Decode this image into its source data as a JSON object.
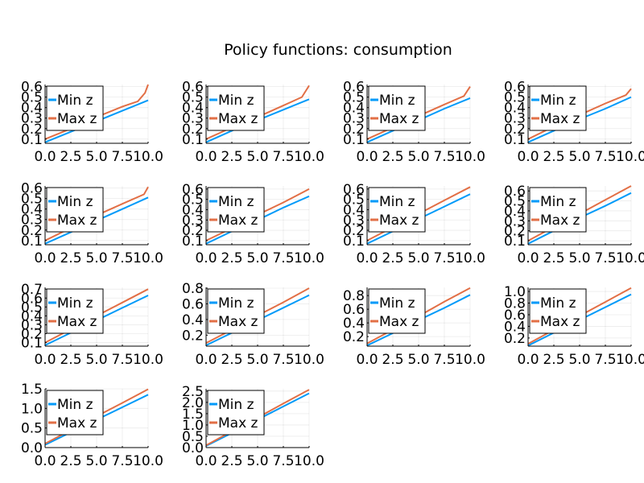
{
  "chart_data": {
    "type": "line",
    "title": "Policy functions: consumption",
    "xlim": [
      0,
      10
    ],
    "x_ticks": [
      "0.0",
      "2.5",
      "5.0",
      "7.5",
      "10.0"
    ],
    "grid": true,
    "legend_position": "top-left",
    "colors": {
      "min_z": "#009AF9",
      "max_z": "#E26F46"
    },
    "series_names": [
      "Min z",
      "Max z"
    ],
    "panels": [
      {
        "y_ticks": [
          "0.1",
          "0.2",
          "0.3",
          "0.4",
          "0.5",
          "0.6"
        ],
        "ylim": [
          0.06,
          0.62
        ],
        "min_z": [
          [
            0,
            0.07
          ],
          [
            2.5,
            0.17
          ],
          [
            5,
            0.27
          ],
          [
            7.5,
            0.37
          ],
          [
            10,
            0.47
          ]
        ],
        "max_z": [
          [
            0,
            0.1
          ],
          [
            2.5,
            0.2
          ],
          [
            5,
            0.31
          ],
          [
            7.5,
            0.41
          ],
          [
            9,
            0.46
          ],
          [
            9.7,
            0.54
          ],
          [
            10,
            0.62
          ]
        ]
      },
      {
        "y_ticks": [
          "0.1",
          "0.2",
          "0.3",
          "0.4",
          "0.5",
          "0.6"
        ],
        "ylim": [
          0.06,
          0.62
        ],
        "min_z": [
          [
            0,
            0.07
          ],
          [
            2.5,
            0.18
          ],
          [
            5,
            0.28
          ],
          [
            7.5,
            0.38
          ],
          [
            10,
            0.48
          ]
        ],
        "max_z": [
          [
            0,
            0.1
          ],
          [
            2.5,
            0.21
          ],
          [
            5,
            0.31
          ],
          [
            7.5,
            0.42
          ],
          [
            9.3,
            0.5
          ],
          [
            10,
            0.61
          ]
        ]
      },
      {
        "y_ticks": [
          "0.1",
          "0.2",
          "0.3",
          "0.4",
          "0.5",
          "0.6"
        ],
        "ylim": [
          0.06,
          0.62
        ],
        "min_z": [
          [
            0,
            0.07
          ],
          [
            2.5,
            0.18
          ],
          [
            5,
            0.28
          ],
          [
            7.5,
            0.39
          ],
          [
            10,
            0.49
          ]
        ],
        "max_z": [
          [
            0,
            0.1
          ],
          [
            2.5,
            0.21
          ],
          [
            5,
            0.32
          ],
          [
            7.5,
            0.43
          ],
          [
            9.4,
            0.51
          ],
          [
            10,
            0.6
          ]
        ]
      },
      {
        "y_ticks": [
          "0.1",
          "0.2",
          "0.3",
          "0.4",
          "0.5",
          "0.6"
        ],
        "ylim": [
          0.06,
          0.62
        ],
        "min_z": [
          [
            0,
            0.07
          ],
          [
            2.5,
            0.18
          ],
          [
            5,
            0.29
          ],
          [
            7.5,
            0.39
          ],
          [
            10,
            0.5
          ]
        ],
        "max_z": [
          [
            0,
            0.1
          ],
          [
            2.5,
            0.22
          ],
          [
            5,
            0.33
          ],
          [
            7.5,
            0.44
          ],
          [
            9.5,
            0.52
          ],
          [
            10,
            0.58
          ]
        ]
      },
      {
        "y_ticks": [
          "0.1",
          "0.2",
          "0.3",
          "0.4",
          "0.5",
          "0.6"
        ],
        "ylim": [
          0.06,
          0.62
        ],
        "min_z": [
          [
            0,
            0.07
          ],
          [
            2.5,
            0.18
          ],
          [
            5,
            0.29
          ],
          [
            7.5,
            0.4
          ],
          [
            10,
            0.51
          ]
        ],
        "max_z": [
          [
            0,
            0.1
          ],
          [
            2.5,
            0.22
          ],
          [
            5,
            0.34
          ],
          [
            7.5,
            0.45
          ],
          [
            9.6,
            0.54
          ],
          [
            10,
            0.61
          ]
        ]
      },
      {
        "y_ticks": [
          "0.1",
          "0.2",
          "0.3",
          "0.4",
          "0.5",
          "0.6"
        ],
        "ylim": [
          0.06,
          0.63
        ],
        "min_z": [
          [
            0,
            0.07
          ],
          [
            2.5,
            0.19
          ],
          [
            5,
            0.3
          ],
          [
            7.5,
            0.42
          ],
          [
            10,
            0.53
          ]
        ],
        "max_z": [
          [
            0,
            0.1
          ],
          [
            2.5,
            0.22
          ],
          [
            5,
            0.35
          ],
          [
            7.5,
            0.47
          ],
          [
            10,
            0.6
          ]
        ]
      },
      {
        "y_ticks": [
          "0.1",
          "0.2",
          "0.3",
          "0.4",
          "0.5",
          "0.6"
        ],
        "ylim": [
          0.06,
          0.63
        ],
        "min_z": [
          [
            0,
            0.07
          ],
          [
            2.5,
            0.19
          ],
          [
            5,
            0.31
          ],
          [
            7.5,
            0.43
          ],
          [
            10,
            0.55
          ]
        ],
        "max_z": [
          [
            0,
            0.1
          ],
          [
            2.5,
            0.23
          ],
          [
            5,
            0.36
          ],
          [
            7.5,
            0.49
          ],
          [
            10,
            0.62
          ]
        ]
      },
      {
        "y_ticks": [
          "0.1",
          "0.2",
          "0.3",
          "0.4",
          "0.5",
          "0.6"
        ],
        "ylim": [
          0.06,
          0.65
        ],
        "min_z": [
          [
            0,
            0.07
          ],
          [
            2.5,
            0.2
          ],
          [
            5,
            0.33
          ],
          [
            7.5,
            0.45
          ],
          [
            10,
            0.58
          ]
        ],
        "max_z": [
          [
            0,
            0.1
          ],
          [
            2.5,
            0.24
          ],
          [
            5,
            0.37
          ],
          [
            7.5,
            0.51
          ],
          [
            10,
            0.65
          ]
        ]
      },
      {
        "y_ticks": [
          "0.1",
          "0.2",
          "0.3",
          "0.4",
          "0.5",
          "0.6",
          "0.7"
        ],
        "ylim": [
          0.06,
          0.72
        ],
        "min_z": [
          [
            0,
            0.07
          ],
          [
            2.5,
            0.21
          ],
          [
            5,
            0.35
          ],
          [
            7.5,
            0.49
          ],
          [
            10,
            0.63
          ]
        ],
        "max_z": [
          [
            0,
            0.1
          ],
          [
            2.5,
            0.25
          ],
          [
            5,
            0.4
          ],
          [
            7.5,
            0.55
          ],
          [
            10,
            0.7
          ]
        ]
      },
      {
        "y_ticks": [
          "0.2",
          "0.4",
          "0.6",
          "0.8"
        ],
        "ylim": [
          0.06,
          0.81
        ],
        "min_z": [
          [
            0,
            0.07
          ],
          [
            2.5,
            0.23
          ],
          [
            5,
            0.39
          ],
          [
            7.5,
            0.55
          ],
          [
            10,
            0.71
          ]
        ],
        "max_z": [
          [
            0,
            0.1
          ],
          [
            2.5,
            0.27
          ],
          [
            5,
            0.45
          ],
          [
            7.5,
            0.62
          ],
          [
            10,
            0.8
          ]
        ]
      },
      {
        "y_ticks": [
          "0.2",
          "0.4",
          "0.6",
          "0.8"
        ],
        "ylim": [
          0.06,
          0.92
        ],
        "min_z": [
          [
            0,
            0.07
          ],
          [
            2.5,
            0.25
          ],
          [
            5,
            0.44
          ],
          [
            7.5,
            0.62
          ],
          [
            10,
            0.81
          ]
        ],
        "max_z": [
          [
            0,
            0.1
          ],
          [
            2.5,
            0.3
          ],
          [
            5,
            0.5
          ],
          [
            7.5,
            0.71
          ],
          [
            10,
            0.91
          ]
        ]
      },
      {
        "y_ticks": [
          "0.2",
          "0.4",
          "0.6",
          "0.8",
          "1.0"
        ],
        "ylim": [
          0.06,
          1.07
        ],
        "min_z": [
          [
            0,
            0.07
          ],
          [
            2.5,
            0.29
          ],
          [
            5,
            0.51
          ],
          [
            7.5,
            0.73
          ],
          [
            10,
            0.95
          ]
        ],
        "max_z": [
          [
            0,
            0.1
          ],
          [
            2.5,
            0.34
          ],
          [
            5,
            0.58
          ],
          [
            7.5,
            0.82
          ],
          [
            10,
            1.06
          ]
        ]
      },
      {
        "y_ticks": [
          "0.0",
          "0.5",
          "1.0",
          "1.5"
        ],
        "ylim": [
          0,
          1.5
        ],
        "min_z": [
          [
            0,
            0.07
          ],
          [
            2.5,
            0.39
          ],
          [
            5,
            0.71
          ],
          [
            7.5,
            1.03
          ],
          [
            10,
            1.35
          ]
        ],
        "max_z": [
          [
            0,
            0.1
          ],
          [
            2.5,
            0.45
          ],
          [
            5,
            0.8
          ],
          [
            7.5,
            1.14
          ],
          [
            10,
            1.49
          ]
        ]
      },
      {
        "y_ticks": [
          "0.0",
          "0.5",
          "1.0",
          "1.5",
          "2.0",
          "2.5"
        ],
        "ylim": [
          0,
          2.6
        ],
        "min_z": [
          [
            0,
            0.07
          ],
          [
            2.5,
            0.65
          ],
          [
            5,
            1.24
          ],
          [
            7.5,
            1.82
          ],
          [
            10,
            2.4
          ]
        ],
        "max_z": [
          [
            0,
            0.1
          ],
          [
            2.5,
            0.72
          ],
          [
            5,
            1.33
          ],
          [
            7.5,
            1.95
          ],
          [
            10,
            2.56
          ]
        ]
      }
    ]
  }
}
